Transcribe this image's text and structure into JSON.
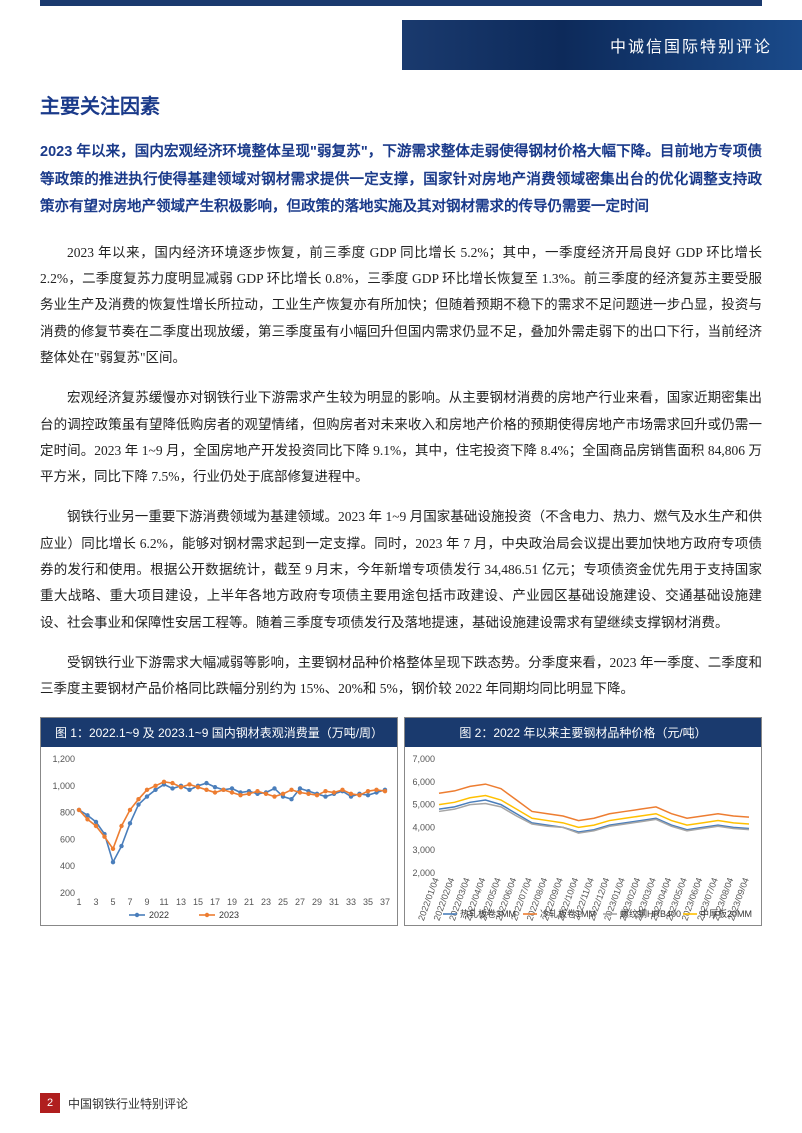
{
  "header": {
    "banner_text": "中诚信国际特别评论"
  },
  "section_heading": "主要关注因素",
  "summary": "2023 年以来，国内宏观经济环境整体呈现\"弱复苏\"，下游需求整体走弱使得钢材价格大幅下降。目前地方专项债等政策的推进执行使得基建领域对钢材需求提供一定支撑，国家针对房地产消费领域密集出台的优化调整支持政策亦有望对房地产领域产生积极影响，但政策的落地实施及其对钢材需求的传导仍需要一定时间",
  "paragraphs": {
    "p1": "2023 年以来，国内经济环境逐步恢复，前三季度 GDP 同比增长 5.2%；其中，一季度经济开局良好 GDP 环比增长 2.2%，二季度复苏力度明显减弱 GDP 环比增长 0.8%，三季度 GDP 环比增长恢复至 1.3%。前三季度的经济复苏主要受服务业生产及消费的恢复性增长所拉动，工业生产恢复亦有所加快；但随着预期不稳下的需求不足问题进一步凸显，投资与消费的修复节奏在二季度出现放缓，第三季度虽有小幅回升但国内需求仍显不足，叠加外需走弱下的出口下行，当前经济整体处在\"弱复苏\"区间。",
    "p2": "宏观经济复苏缓慢亦对钢铁行业下游需求产生较为明显的影响。从主要钢材消费的房地产行业来看，国家近期密集出台的调控政策虽有望降低购房者的观望情绪，但购房者对未来收入和房地产价格的预期使得房地产市场需求回升或仍需一定时间。2023 年 1~9 月，全国房地产开发投资同比下降 9.1%，其中，住宅投资下降 8.4%；全国商品房销售面积 84,806 万平方米，同比下降 7.5%，行业仍处于底部修复进程中。",
    "p3": "钢铁行业另一重要下游消费领域为基建领域。2023 年 1~9 月国家基础设施投资（不含电力、热力、燃气及水生产和供应业）同比增长 6.2%，能够对钢材需求起到一定支撑。同时，2023 年 7 月，中央政治局会议提出要加快地方政府专项债券的发行和使用。根据公开数据统计，截至 9 月末，今年新增专项债发行 34,486.51 亿元；专项债资金优先用于支持国家重大战略、重大项目建设，上半年各地方政府专项债主要用途包括市政建设、产业园区基础设施建设、交通基础设施建设、社会事业和保障性安居工程等。随着三季度专项债发行及落地提速，基础设施建设需求有望继续支撑钢材消费。",
    "p4": "受钢铁行业下游需求大幅减弱等影响，主要钢材品种价格整体呈现下跌态势。分季度来看，2023 年一季度、二季度和三季度主要钢材产品价格同比跌幅分别约为 15%、20%和 5%，钢价较 2022 年同期均同比明显下降。"
  },
  "chart1": {
    "title": "图 1：2022.1~9 及 2023.1~9 国内钢材表观消费量（万吨/周）",
    "type": "line",
    "ylim": [
      200,
      1200
    ],
    "ytick_step": 200,
    "x_values": [
      1,
      3,
      5,
      7,
      9,
      11,
      13,
      15,
      17,
      19,
      21,
      23,
      25,
      27,
      29,
      31,
      33,
      35,
      37
    ],
    "series": {
      "2022": {
        "label": "2022",
        "color": "#4a7ebb",
        "values": [
          820,
          780,
          730,
          640,
          430,
          550,
          720,
          860,
          920,
          970,
          1010,
          980,
          1000,
          970,
          1000,
          1020,
          990,
          970,
          980,
          950,
          960,
          940,
          950,
          980,
          920,
          900,
          980,
          960,
          940,
          920,
          940,
          960,
          920,
          940,
          930,
          950,
          970
        ]
      },
      "2023": {
        "label": "2023",
        "color": "#ed7d31",
        "values": [
          820,
          750,
          700,
          620,
          530,
          700,
          820,
          900,
          970,
          1000,
          1030,
          1020,
          990,
          1010,
          990,
          970,
          950,
          970,
          950,
          930,
          940,
          960,
          940,
          920,
          940,
          970,
          950,
          940,
          930,
          960,
          950,
          970,
          940,
          930,
          960,
          970,
          960
        ]
      }
    },
    "background_color": "#ffffff",
    "grid_color": "#ffffff",
    "marker_size": 2.2
  },
  "chart2": {
    "title": "图 2：2022 年以来主要钢材品种价格（元/吨）",
    "type": "line",
    "ylim": [
      2000,
      7000
    ],
    "ytick_step": 1000,
    "x_labels": [
      "2022/01/04",
      "2022/02/04",
      "2022/03/04",
      "2022/04/04",
      "2022/05/04",
      "2022/06/04",
      "2022/07/04",
      "2022/08/04",
      "2022/09/04",
      "2022/10/04",
      "2022/11/04",
      "2022/12/04",
      "2023/01/04",
      "2023/02/04",
      "2023/03/04",
      "2023/04/04",
      "2023/05/04",
      "2023/06/04",
      "2023/07/04",
      "2023/08/04",
      "2023/09/04"
    ],
    "series": {
      "s1": {
        "label": "热轧板卷3MM",
        "color": "#4a7ebb",
        "values": [
          4800,
          4900,
          5100,
          5200,
          5000,
          4600,
          4200,
          4100,
          4000,
          3800,
          3900,
          4100,
          4200,
          4300,
          4400,
          4100,
          3900,
          4000,
          4100,
          4000,
          3950
        ]
      },
      "s2": {
        "label": "冷轧板卷1MM",
        "color": "#ed7d31",
        "values": [
          5500,
          5600,
          5800,
          5900,
          5700,
          5200,
          4700,
          4600,
          4500,
          4300,
          4400,
          4600,
          4700,
          4800,
          4900,
          4600,
          4400,
          4500,
          4600,
          4500,
          4450
        ]
      },
      "s3": {
        "label": "螺纹钢HRB400",
        "color": "#a5a5a5",
        "values": [
          4700,
          4800,
          5000,
          5050,
          4900,
          4500,
          4150,
          4050,
          4000,
          3750,
          3850,
          4050,
          4150,
          4250,
          4350,
          4050,
          3850,
          3950,
          4050,
          3950,
          3900
        ]
      },
      "s4": {
        "label": "中厚板20MM",
        "color": "#ffc000",
        "values": [
          5000,
          5100,
          5300,
          5400,
          5200,
          4800,
          4400,
          4300,
          4200,
          4000,
          4100,
          4300,
          4400,
          4500,
          4600,
          4300,
          4100,
          4200,
          4300,
          4200,
          4150
        ]
      }
    },
    "background_color": "#ffffff"
  },
  "footer": {
    "page_number": "2",
    "footer_text": "中国钢铁行业特别评论"
  }
}
